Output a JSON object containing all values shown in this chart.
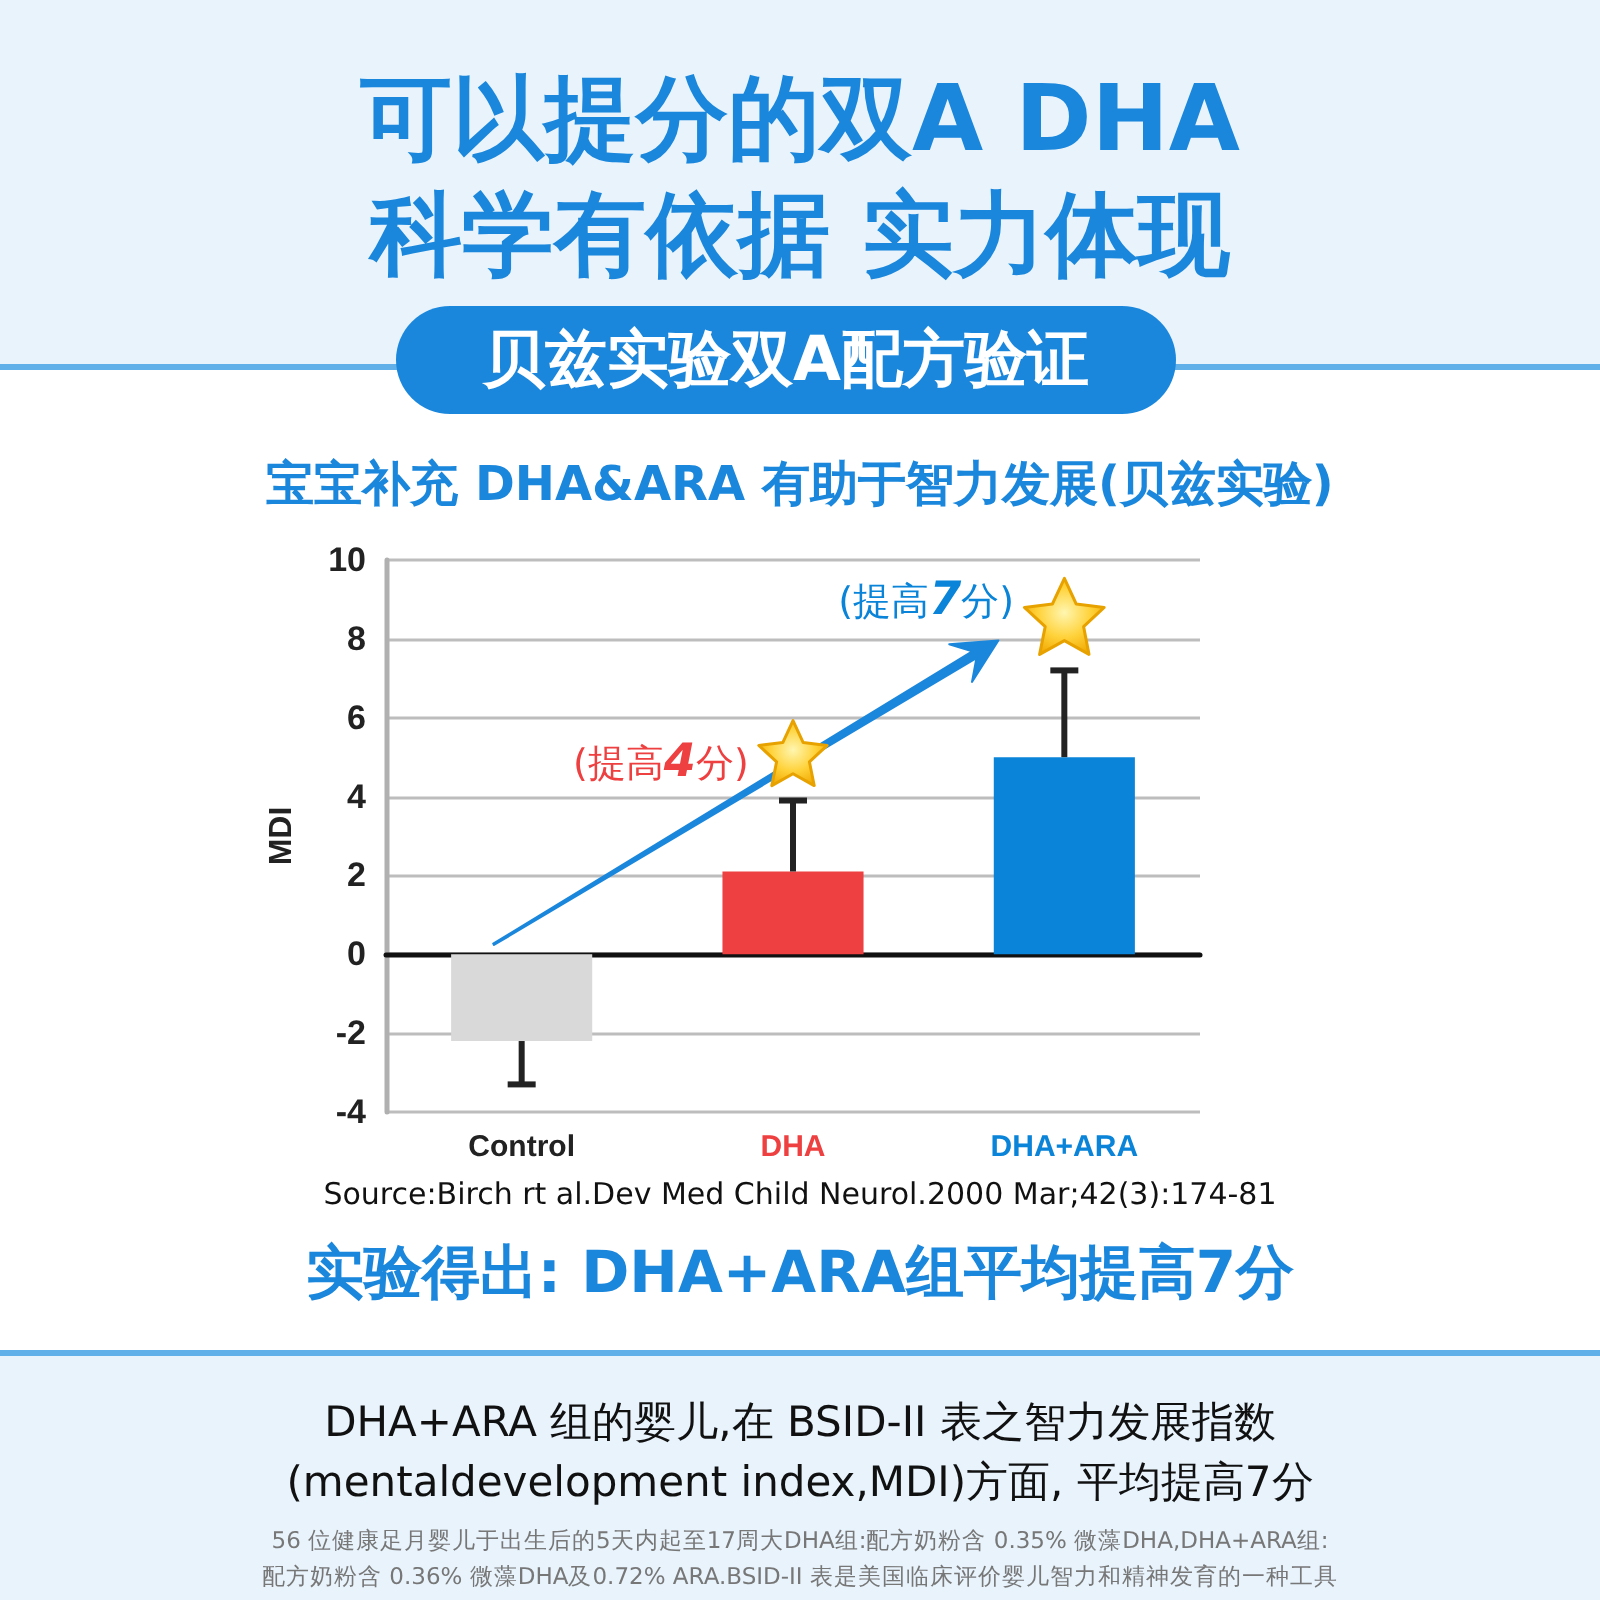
{
  "chart_data": {
    "type": "bar",
    "title": "可以提分的双A DHA\n科学有依据 实力体现",
    "subtitle": "贝兹实验双A配方验证",
    "ylabel": "MDI",
    "categories": [
      "Control",
      "DHA",
      "DHA+ARA"
    ],
    "values": [
      -2.2,
      2.1,
      5.0
    ],
    "colors": [
      "#d9d9d9",
      "#ee4040",
      "#0a84d8"
    ],
    "errors": [
      [
        -3.3,
        -2.2
      ],
      [
        2.1,
        3.9
      ],
      [
        5.0,
        7.2
      ]
    ],
    "ylim": [
      -4,
      10
    ],
    "yticks": [
      -4,
      -2,
      0,
      2,
      4,
      6,
      8,
      10
    ],
    "grid": "y",
    "annotations": [
      "宝宝补充 DHA&ARA 有助于智力发展(贝兹实验)",
      "(提高4分)",
      "(提高7分)",
      "Source:Birch rt al.Dev Med Child Neurol.2000 Mar;42(3):174-81",
      "实验得出: DHA+ARA组平均提高7分",
      "DHA+ARA 组的婴儿,在 BSID-II 表之智力发展指数\n(mentaldevelopment index,MDI)方面, 平均提高7分",
      "56 位健康足月婴儿于出生后的5天内起至17周大DHA组:配方奶粉含 0.35% 微藻DHA,DHA+ARA组:\n配方奶粉含 0.36% 微藻DHA及0.72% ARA.BSID-II 表是美国临床评价婴儿智力和精神发育的一种工具"
    ]
  }
}
